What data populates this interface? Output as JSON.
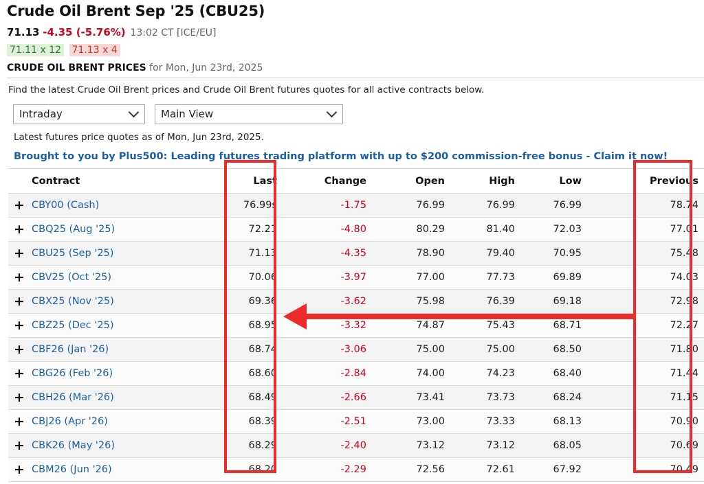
{
  "header": {
    "title": "Crude Oil Brent Sep '25 (CBU25)",
    "last": "71.13",
    "change": "-4.35 (-5.76%)",
    "time": "13:02 CT [ICE/EU]",
    "bid": "71.11 x 12",
    "ask": "71.13 x 4",
    "prices_label": "CRUDE OIL BRENT PRICES",
    "prices_for": "for Mon, Jun 23rd, 2025"
  },
  "description": "Find the latest Crude Oil Brent prices and Crude Oil Brent futures quotes for all active contracts below.",
  "controls": {
    "period_select": "Intraday",
    "view_select": "Main View"
  },
  "as_of": "Latest futures price quotes as of Mon, Jun 23rd, 2025.",
  "promo": "Brought to you by Plus500: Leading futures trading platform with up to $200 commission-free bonus - Claim it now!",
  "table": {
    "headers": [
      "Contract",
      "Last",
      "Change",
      "Open",
      "High",
      "Low",
      "Previous"
    ],
    "rows": [
      {
        "contract": "CBY00 (Cash)",
        "last": "76.99s",
        "change": "-1.75",
        "open": "76.99",
        "high": "76.99",
        "low": "76.99",
        "previous": "78.74"
      },
      {
        "contract": "CBQ25 (Aug '25)",
        "last": "72.21",
        "change": "-4.80",
        "open": "80.29",
        "high": "81.40",
        "low": "72.03",
        "previous": "77.01"
      },
      {
        "contract": "CBU25 (Sep '25)",
        "last": "71.13",
        "change": "-4.35",
        "open": "78.90",
        "high": "79.40",
        "low": "70.95",
        "previous": "75.48"
      },
      {
        "contract": "CBV25 (Oct '25)",
        "last": "70.06",
        "change": "-3.97",
        "open": "77.00",
        "high": "77.73",
        "low": "69.89",
        "previous": "74.03"
      },
      {
        "contract": "CBX25 (Nov '25)",
        "last": "69.36",
        "change": "-3.62",
        "open": "75.98",
        "high": "76.39",
        "low": "69.18",
        "previous": "72.98"
      },
      {
        "contract": "CBZ25 (Dec '25)",
        "last": "68.95",
        "change": "-3.32",
        "open": "74.87",
        "high": "75.43",
        "low": "68.71",
        "previous": "72.27"
      },
      {
        "contract": "CBF26 (Jan '26)",
        "last": "68.74",
        "change": "-3.06",
        "open": "75.00",
        "high": "75.00",
        "low": "68.50",
        "previous": "71.80"
      },
      {
        "contract": "CBG26 (Feb '26)",
        "last": "68.60",
        "change": "-2.84",
        "open": "74.00",
        "high": "74.23",
        "low": "68.40",
        "previous": "71.44"
      },
      {
        "contract": "CBH26 (Mar '26)",
        "last": "68.49",
        "change": "-2.66",
        "open": "73.41",
        "high": "73.73",
        "low": "68.24",
        "previous": "71.15"
      },
      {
        "contract": "CBJ26 (Apr '26)",
        "last": "68.39",
        "change": "-2.51",
        "open": "73.00",
        "high": "73.33",
        "low": "68.13",
        "previous": "70.90"
      },
      {
        "contract": "CBK26 (May '26)",
        "last": "68.29",
        "change": "-2.40",
        "open": "73.12",
        "high": "73.12",
        "low": "68.05",
        "previous": "70.69"
      },
      {
        "contract": "CBM26 (Jun '26)",
        "last": "68.20",
        "change": "-2.29",
        "open": "72.56",
        "high": "72.61",
        "low": "67.92",
        "previous": "70.49"
      }
    ]
  },
  "annotation_color": "#ee2b2b"
}
